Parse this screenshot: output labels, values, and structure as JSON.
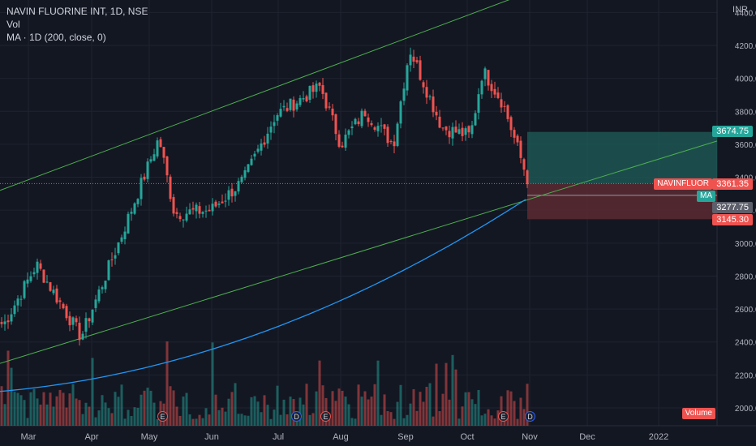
{
  "legend": {
    "symbol_line": "NAVIN FLUORINE INT, 1D, NSE",
    "vol_label": "Vol",
    "ma_label": "MA · 1D (200, close, 0)"
  },
  "currency": "INR",
  "price_axis": {
    "ticks": [
      "4400.00",
      "4200.00",
      "4000.00",
      "3800.00",
      "3600.00",
      "3400.00",
      "3200.00",
      "3000.00",
      "2800.00",
      "2600.00",
      "2400.00",
      "2200.00",
      "2000.00"
    ]
  },
  "time_axis": {
    "ticks": [
      "Mar",
      "Apr",
      "May",
      "Jun",
      "Jul",
      "Aug",
      "Sep",
      "Oct",
      "Nov",
      "Dec",
      "2022"
    ]
  },
  "tags": {
    "target": "3674.75",
    "symbol": "NAVINFLUOR",
    "last": "3361.35",
    "ma_label": "MA",
    "ma_value": "3277.75",
    "stop": "3145.30",
    "volume": "Volume"
  },
  "events": [
    "E",
    "D",
    "E",
    "E",
    "D"
  ],
  "colors": {
    "up": "#26a69a",
    "down": "#ef5350",
    "ma": "#2196f3",
    "trend": "#4caf50",
    "target_zone": "#1f5f5a",
    "stop_zone": "#5c2a31"
  },
  "chart_data": {
    "type": "candlestick",
    "price_ylim": [
      1900,
      4500
    ],
    "x_months": [
      "Mar",
      "Apr",
      "May",
      "Jun",
      "Jul",
      "Aug",
      "Sep",
      "Oct",
      "Nov",
      "Dec",
      "2022"
    ],
    "close_anchors": [
      {
        "x": "early Mar",
        "y": 2510
      },
      {
        "x": "mid Mar",
        "y": 2870
      },
      {
        "x": "late Mar",
        "y": 2430
      },
      {
        "x": "mid Apr",
        "y": 3050
      },
      {
        "x": "early May",
        "y": 3640
      },
      {
        "x": "mid May",
        "y": 3180
      },
      {
        "x": "Jun",
        "y": 3200
      },
      {
        "x": "mid Jun",
        "y": 3380
      },
      {
        "x": "early Jul",
        "y": 3780
      },
      {
        "x": "late Jul",
        "y": 3950
      },
      {
        "x": "early Aug",
        "y": 3600
      },
      {
        "x": "mid Aug",
        "y": 3800
      },
      {
        "x": "late Aug",
        "y": 3600
      },
      {
        "x": "early Sep",
        "y": 4180
      },
      {
        "x": "mid Sep",
        "y": 3700
      },
      {
        "x": "late Sep",
        "y": 3650
      },
      {
        "x": "early Oct",
        "y": 4050
      },
      {
        "x": "mid Oct",
        "y": 3850
      },
      {
        "x": "late Oct",
        "y": 3361.35
      }
    ],
    "ma_200": {
      "start": 2100,
      "end": 3277.75
    },
    "trendline_upper": {
      "from": 3320,
      "to": 4500
    },
    "trendline_lower": {
      "from": 2270,
      "to": 3620
    },
    "target_price": 3674.75,
    "entry_price": 3361.35,
    "stop_price": 3145.3
  }
}
